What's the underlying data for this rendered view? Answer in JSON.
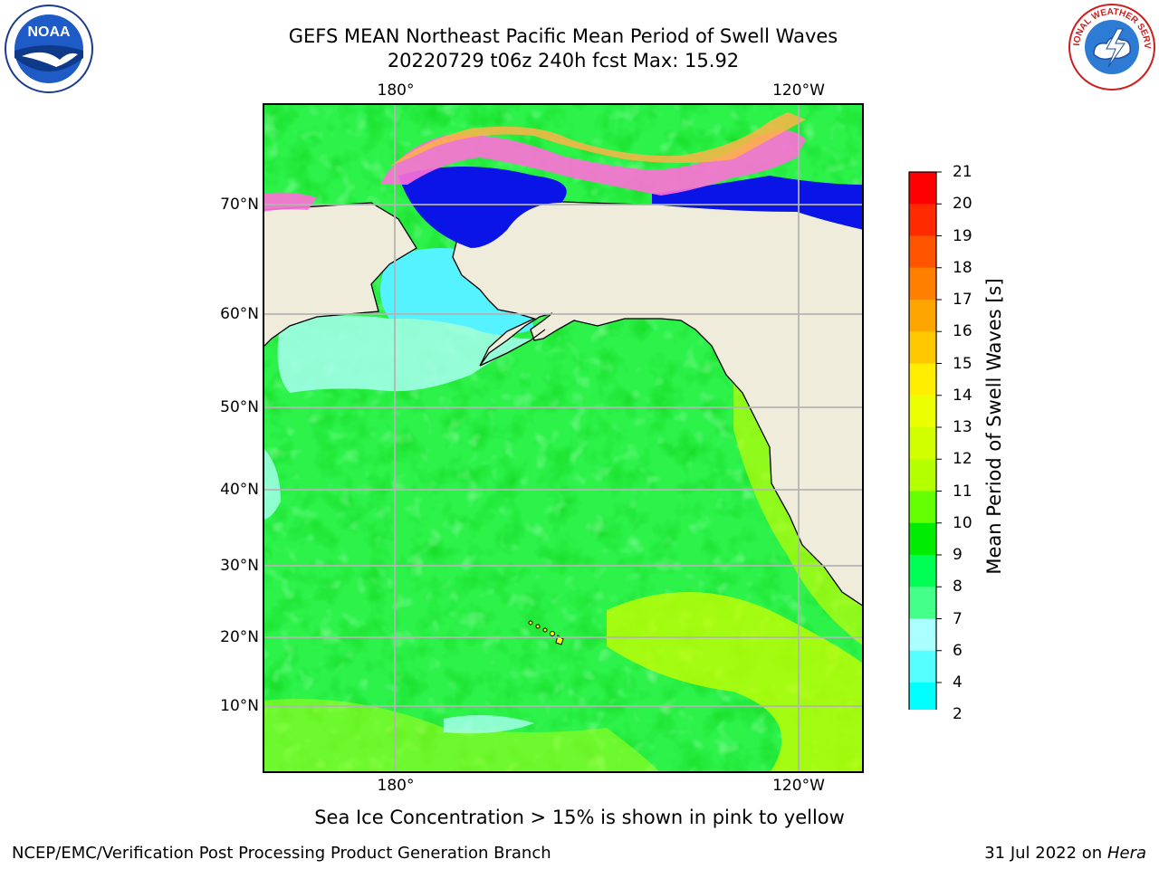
{
  "title": {
    "line1": "GEFS MEAN Northeast Pacific Mean Period of Swell Waves",
    "line2": "20220729 t06z 240h fcst   Max: 15.92"
  },
  "logos": {
    "left": {
      "icon": "noaa-logo",
      "text": "NOAA"
    },
    "right": {
      "icon": "nws-logo",
      "text": "NATIONAL WEATHER SERVICE"
    }
  },
  "map": {
    "lon_ticks_top": [
      "180°",
      "120°W"
    ],
    "lon_ticks_bottom": [
      "180°",
      "120°W"
    ],
    "lat_ticks": [
      "70°N",
      "60°N",
      "50°N",
      "40°N",
      "30°N",
      "20°N",
      "10°N"
    ],
    "colors": {
      "land": "#efecdc",
      "coast": "#000000",
      "grid": "#b4b4b4",
      "ice_pink": "#ff6fd8",
      "ice_orange": "#ffb347",
      "sea_blue": "#0a14e6",
      "sea_cyan": "#55f2ff",
      "sea_lightcyan": "#aaffff",
      "sea_green": "#44ff7a",
      "sea_brightgreen": "#00e800",
      "sea_yellowgreen": "#ccff00"
    }
  },
  "colorbar": {
    "label": "Mean Period of Swell Waves [s]",
    "ticks": [
      "21",
      "20",
      "19",
      "18",
      "17",
      "16",
      "15",
      "14",
      "13",
      "12",
      "11",
      "10",
      "9",
      "8",
      "7",
      "6",
      "4",
      "2"
    ],
    "colors": [
      "#ff0000",
      "#ff2a00",
      "#ff5500",
      "#ff7f00",
      "#ffa500",
      "#ffc800",
      "#ffee00",
      "#ecff00",
      "#d2ff00",
      "#b4ff00",
      "#64ff00",
      "#00ec00",
      "#00ff55",
      "#44ff88",
      "#aaffff",
      "#55ffff",
      "#00ffff",
      "#00d2ff",
      "#0078ff",
      "#0000ff"
    ]
  },
  "note": "Sea Ice Concentration > 15% is shown in pink to yellow",
  "footer": {
    "left": "NCEP/EMC/Verification Post Processing Product Generation Branch",
    "right_date": "31 Jul 2022 on ",
    "right_machine": "Hera"
  }
}
